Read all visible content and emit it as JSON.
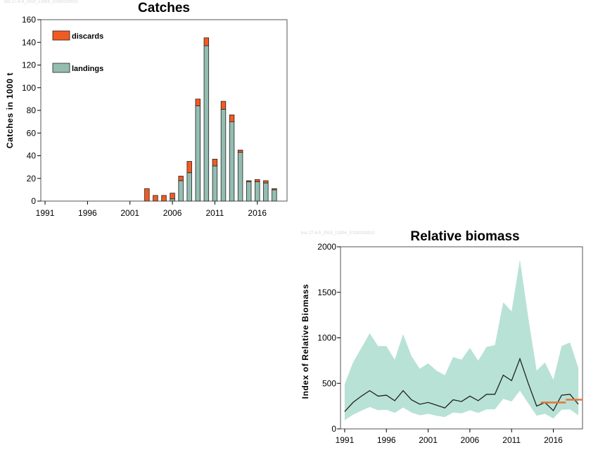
{
  "charts": [
    {
      "watermark": "bsc.27.6-9_2019_13304_20190329010",
      "chart_data": {
        "type": "bar",
        "title": "Catches",
        "xlabel": "",
        "ylabel": "Catches in 1000 t",
        "ylim": [
          0,
          160
        ],
        "yticks": [
          0,
          20,
          40,
          60,
          80,
          100,
          120,
          140,
          160
        ],
        "xlim": [
          1990.5,
          2019.5
        ],
        "xticks": [
          1991,
          1996,
          2001,
          2006,
          2011,
          2016
        ],
        "grid": false,
        "legend_position": "top-left",
        "stacked": true,
        "categories": [
          2003,
          2004,
          2005,
          2006,
          2007,
          2008,
          2009,
          2010,
          2011,
          2012,
          2013,
          2014,
          2015,
          2016,
          2017,
          2018
        ],
        "series": [
          {
            "name": "landings",
            "color": "#93bdb0",
            "values": [
              0,
              0,
              0,
              2,
              18,
              25,
              84,
              137,
              31,
              81,
              70,
              43,
              17,
              17,
              16,
              10
            ]
          },
          {
            "name": "discards",
            "color": "#f15b22",
            "values": [
              11,
              5,
              5,
              5,
              4,
              10,
              6,
              7,
              6,
              7,
              6,
              2,
              1,
              2,
              2,
              1
            ]
          }
        ]
      }
    },
    {
      "watermark": "bsc.27.6-9_2019_13304_20190329010",
      "chart_data": {
        "type": "line",
        "title": "Relative biomass",
        "xlabel": "",
        "ylabel": "Index of Relative Biomass",
        "ylim": [
          0,
          2000
        ],
        "yticks": [
          0,
          500,
          1000,
          1500,
          2000
        ],
        "xlim": [
          1990.5,
          2019.5
        ],
        "xticks": [
          1991,
          1996,
          2001,
          2006,
          2011,
          2016
        ],
        "grid": false,
        "x": [
          1991,
          1992,
          1993,
          1994,
          1995,
          1996,
          1997,
          1998,
          1999,
          2000,
          2001,
          2002,
          2003,
          2004,
          2005,
          2006,
          2007,
          2008,
          2009,
          2010,
          2011,
          2012,
          2013,
          2014,
          2015,
          2016,
          2017,
          2018,
          2019
        ],
        "series": [
          {
            "role": "line",
            "color": "#222222",
            "values": [
              190,
              290,
              360,
              420,
              360,
              370,
              310,
              420,
              320,
              270,
              290,
              260,
              230,
              320,
              300,
              360,
              310,
              380,
              380,
              590,
              530,
              770,
              500,
              250,
              290,
              200,
              370,
              380,
              270
            ]
          },
          {
            "role": "band-upper",
            "color": "#b8e2d6",
            "values": [
              490,
              730,
              890,
              1050,
              910,
              910,
              760,
              1040,
              800,
              660,
              720,
              640,
              590,
              790,
              760,
              890,
              750,
              900,
              920,
              1390,
              1290,
              1860,
              1220,
              640,
              730,
              540,
              910,
              950,
              670
            ]
          },
          {
            "role": "band-lower",
            "color": "#b8e2d6",
            "values": [
              95,
              155,
              200,
              240,
              205,
              210,
              175,
              235,
              180,
              150,
              165,
              145,
              130,
              180,
              170,
              205,
              175,
              215,
              215,
              330,
              300,
              420,
              280,
              145,
              165,
              115,
              210,
              215,
              150
            ]
          }
        ],
        "reference_segments": [
          {
            "color": "#e8733a",
            "x": [
              2014.5,
              2017.5
            ],
            "y": 290
          },
          {
            "color": "#e8733a",
            "x": [
              2017.5,
              2019.5
            ],
            "y": 320
          }
        ]
      }
    }
  ]
}
